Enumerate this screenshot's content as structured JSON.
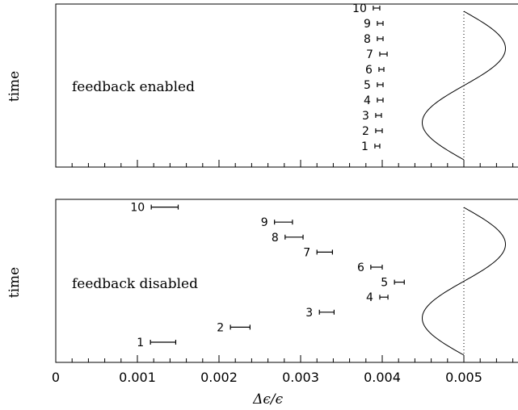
{
  "chart_data": [
    {
      "type": "errorbar",
      "annotation": "feedback enabled",
      "ylabel": "time",
      "xlim": [
        0,
        0.0056
      ],
      "points": [
        {
          "label": "1",
          "lo": 0.00391,
          "hi": 0.00397
        },
        {
          "label": "2",
          "lo": 0.00392,
          "hi": 0.004
        },
        {
          "label": "3",
          "lo": 0.00392,
          "hi": 0.00399
        },
        {
          "label": "4",
          "lo": 0.00394,
          "hi": 0.00401
        },
        {
          "label": "5",
          "lo": 0.00394,
          "hi": 0.00401
        },
        {
          "label": "6",
          "lo": 0.00396,
          "hi": 0.00402
        },
        {
          "label": "7",
          "lo": 0.00397,
          "hi": 0.00406
        },
        {
          "label": "8",
          "lo": 0.00394,
          "hi": 0.00401
        },
        {
          "label": "9",
          "lo": 0.00394,
          "hi": 0.00401
        },
        {
          "label": "10",
          "lo": 0.00389,
          "hi": 0.00397
        }
      ],
      "reference_line": 0.005,
      "sine": {
        "center": 0.005,
        "amplitude": 0.00051,
        "cycles": 1
      }
    },
    {
      "type": "errorbar",
      "annotation": "feedback disabled",
      "ylabel": "time",
      "xlabel": "Δϵ/ϵ",
      "xlim": [
        0,
        0.0056
      ],
      "xticks": [
        "0",
        "0.001",
        "0.002",
        "0.003",
        "0.004",
        "0.005"
      ],
      "points": [
        {
          "label": "1",
          "lo": 0.00116,
          "hi": 0.00147
        },
        {
          "label": "2",
          "lo": 0.00214,
          "hi": 0.00238
        },
        {
          "label": "3",
          "lo": 0.00323,
          "hi": 0.00341
        },
        {
          "label": "4",
          "lo": 0.00397,
          "hi": 0.00407
        },
        {
          "label": "5",
          "lo": 0.00415,
          "hi": 0.00427
        },
        {
          "label": "6",
          "lo": 0.00386,
          "hi": 0.004
        },
        {
          "label": "7",
          "lo": 0.0032,
          "hi": 0.00339
        },
        {
          "label": "8",
          "lo": 0.00281,
          "hi": 0.00303
        },
        {
          "label": "9",
          "lo": 0.00268,
          "hi": 0.0029
        },
        {
          "label": "10",
          "lo": 0.00117,
          "hi": 0.0015
        }
      ],
      "reference_line": 0.005,
      "sine": {
        "center": 0.005,
        "amplitude": 0.00051,
        "cycles": 1
      }
    }
  ]
}
